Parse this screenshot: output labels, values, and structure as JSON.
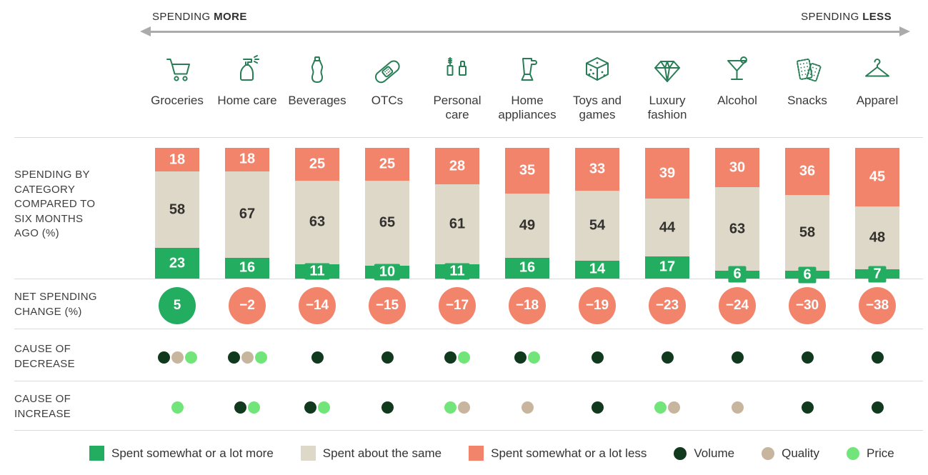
{
  "header": {
    "left": {
      "prefix": "SPENDING ",
      "bold": "MORE"
    },
    "right": {
      "prefix": "SPENDING ",
      "bold": "LESS"
    }
  },
  "row_labels": {
    "spending": "SPENDING BY CATEGORY COMPARED TO SIX MONTHS AGO (%)",
    "net": "NET SPENDING CHANGE (%)",
    "decrease": "CAUSE OF DECREASE",
    "increase": "CAUSE OF INCREASE"
  },
  "legend": {
    "more": "Spent somewhat or a lot more",
    "same": "Spent about the same",
    "less": "Spent somewhat or a lot less",
    "volume": "Volume",
    "quality": "Quality",
    "price": "Price"
  },
  "colors": {
    "more": "#23AD61",
    "same": "#DED8C9",
    "less": "#F2846C",
    "volume": "#11391E",
    "quality": "#C7B59E",
    "price": "#72E57A",
    "icon_green": "#287D56",
    "arrow_gray": "#ABABAB"
  },
  "categories": [
    {
      "label": "Groceries",
      "icon": "cart-icon",
      "less": 18,
      "same": 58,
      "more": 23,
      "net": 5,
      "decrease_causes": [
        "volume",
        "quality",
        "price"
      ],
      "increase_causes": [
        "price"
      ]
    },
    {
      "label": "Home care",
      "icon": "spray-bottle-icon",
      "less": 18,
      "same": 67,
      "more": 16,
      "net": -2,
      "decrease_causes": [
        "volume",
        "quality",
        "price"
      ],
      "increase_causes": [
        "volume",
        "price"
      ]
    },
    {
      "label": "Beverages",
      "icon": "bottle-icon",
      "less": 25,
      "same": 63,
      "more": 11,
      "net": -14,
      "decrease_causes": [
        "volume"
      ],
      "increase_causes": [
        "volume",
        "price"
      ]
    },
    {
      "label": "OTCs",
      "icon": "bandage-icon",
      "less": 25,
      "same": 65,
      "more": 10,
      "net": -15,
      "decrease_causes": [
        "volume"
      ],
      "increase_causes": [
        "volume"
      ]
    },
    {
      "label": "Personal care",
      "icon": "cosmetics-icon",
      "less": 28,
      "same": 61,
      "more": 11,
      "net": -17,
      "decrease_causes": [
        "volume",
        "price"
      ],
      "increase_causes": [
        "price",
        "quality"
      ]
    },
    {
      "label": "Home appliances",
      "icon": "blender-icon",
      "less": 35,
      "same": 49,
      "more": 16,
      "net": -18,
      "decrease_causes": [
        "volume",
        "price"
      ],
      "increase_causes": [
        "quality"
      ]
    },
    {
      "label": "Toys and games",
      "icon": "dice-icon",
      "less": 33,
      "same": 54,
      "more": 14,
      "net": -19,
      "decrease_causes": [
        "volume"
      ],
      "increase_causes": [
        "volume"
      ]
    },
    {
      "label": "Luxury fashion",
      "icon": "diamond-icon",
      "less": 39,
      "same": 44,
      "more": 17,
      "net": -23,
      "decrease_causes": [
        "volume"
      ],
      "increase_causes": [
        "price",
        "quality"
      ]
    },
    {
      "label": "Alcohol",
      "icon": "martini-icon",
      "less": 30,
      "same": 63,
      "more": 6,
      "net": -24,
      "decrease_causes": [
        "volume"
      ],
      "increase_causes": [
        "quality"
      ]
    },
    {
      "label": "Snacks",
      "icon": "crackers-icon",
      "less": 36,
      "same": 58,
      "more": 6,
      "net": -30,
      "decrease_causes": [
        "volume"
      ],
      "increase_causes": [
        "volume"
      ]
    },
    {
      "label": "Apparel",
      "icon": "hanger-icon",
      "less": 45,
      "same": 48,
      "more": 7,
      "net": -38,
      "decrease_causes": [
        "volume"
      ],
      "increase_causes": [
        "volume"
      ]
    }
  ],
  "chart_data": {
    "type": "bar",
    "stacked": true,
    "orientation": "vertical",
    "title": "SPENDING BY CATEGORY COMPARED TO SIX MONTHS AGO (%)",
    "categories": [
      "Groceries",
      "Home care",
      "Beverages",
      "OTCs",
      "Personal care",
      "Home appliances",
      "Toys and games",
      "Luxury fashion",
      "Alcohol",
      "Snacks",
      "Apparel"
    ],
    "series": [
      {
        "name": "Spent somewhat or a lot less",
        "color": "#F2846C",
        "values": [
          18,
          18,
          25,
          25,
          28,
          35,
          33,
          39,
          30,
          36,
          45
        ]
      },
      {
        "name": "Spent about the same",
        "color": "#DED8C9",
        "values": [
          58,
          67,
          63,
          65,
          61,
          49,
          54,
          44,
          63,
          58,
          48
        ]
      },
      {
        "name": "Spent somewhat or a lot more",
        "color": "#23AD61",
        "values": [
          23,
          16,
          11,
          10,
          11,
          16,
          14,
          17,
          6,
          6,
          7
        ]
      }
    ],
    "net_spending_change_pct": [
      5,
      -2,
      -14,
      -15,
      -17,
      -18,
      -19,
      -23,
      -24,
      -30,
      -38
    ],
    "cause_of_decrease": [
      [
        "volume",
        "quality",
        "price"
      ],
      [
        "volume",
        "quality",
        "price"
      ],
      [
        "volume"
      ],
      [
        "volume"
      ],
      [
        "volume",
        "price"
      ],
      [
        "volume",
        "price"
      ],
      [
        "volume"
      ],
      [
        "volume"
      ],
      [
        "volume"
      ],
      [
        "volume"
      ],
      [
        "volume"
      ]
    ],
    "cause_of_increase": [
      [
        "price"
      ],
      [
        "volume",
        "price"
      ],
      [
        "volume",
        "price"
      ],
      [
        "volume"
      ],
      [
        "price",
        "quality"
      ],
      [
        "quality"
      ],
      [
        "volume"
      ],
      [
        "price",
        "quality"
      ],
      [
        "quality"
      ],
      [
        "volume"
      ],
      [
        "volume"
      ]
    ],
    "axis_note": "Categories ordered from SPENDING MORE (left) to SPENDING LESS (right)",
    "ylim": [
      0,
      100
    ],
    "grid": false,
    "legend_position": "bottom"
  }
}
